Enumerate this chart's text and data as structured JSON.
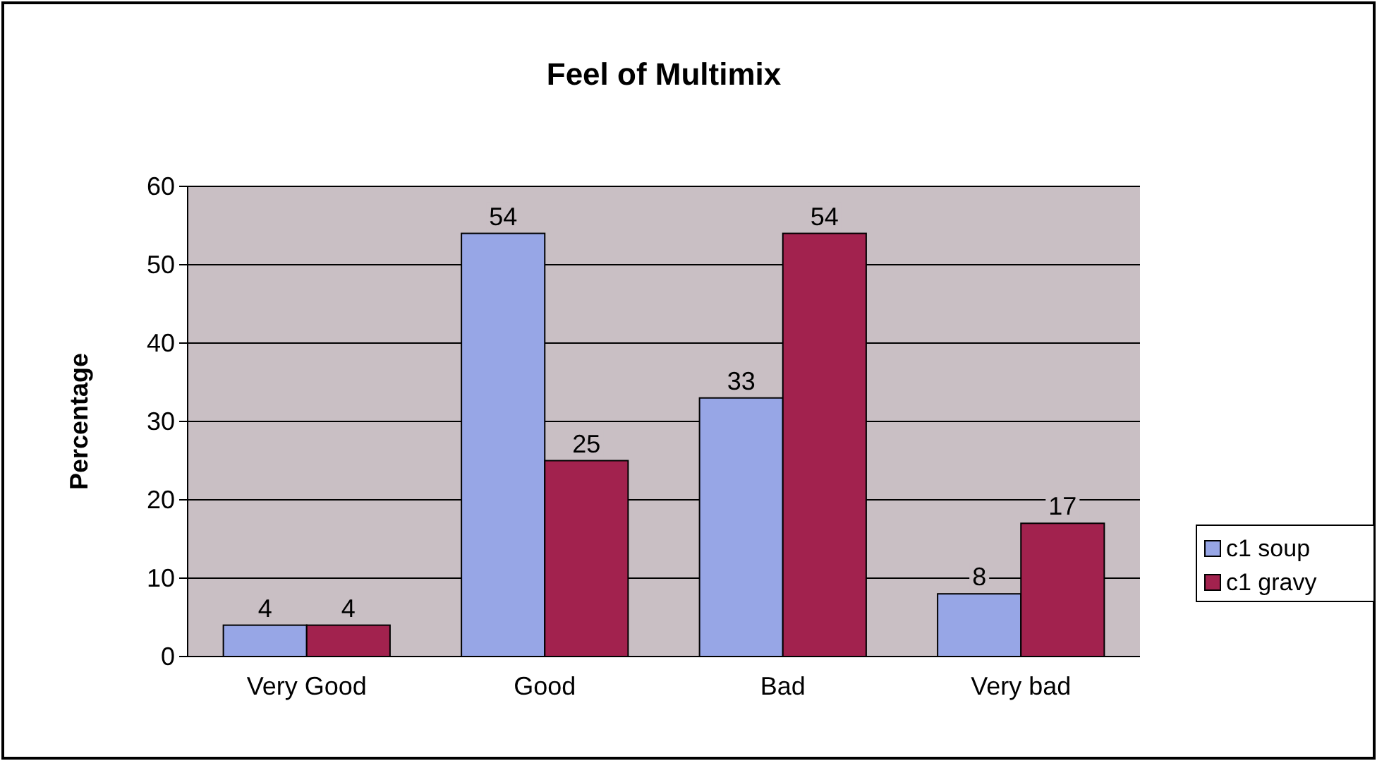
{
  "chart_data": {
    "type": "bar",
    "title": "Feel of Multimix",
    "ylabel": "Percentage",
    "categories": [
      "Very Good",
      "Good",
      "Bad",
      "Very bad"
    ],
    "series": [
      {
        "name": "c1 soup",
        "color": "#97a6e6",
        "values": [
          4,
          54,
          33,
          8
        ]
      },
      {
        "name": "c1 gravy",
        "color": "#a2224e",
        "values": [
          4,
          25,
          54,
          17
        ]
      }
    ],
    "ylim": [
      0,
      60
    ],
    "yticks": [
      0,
      10,
      20,
      30,
      40,
      50,
      60
    ],
    "grid": "y",
    "legend": "right",
    "data_labels": true
  }
}
